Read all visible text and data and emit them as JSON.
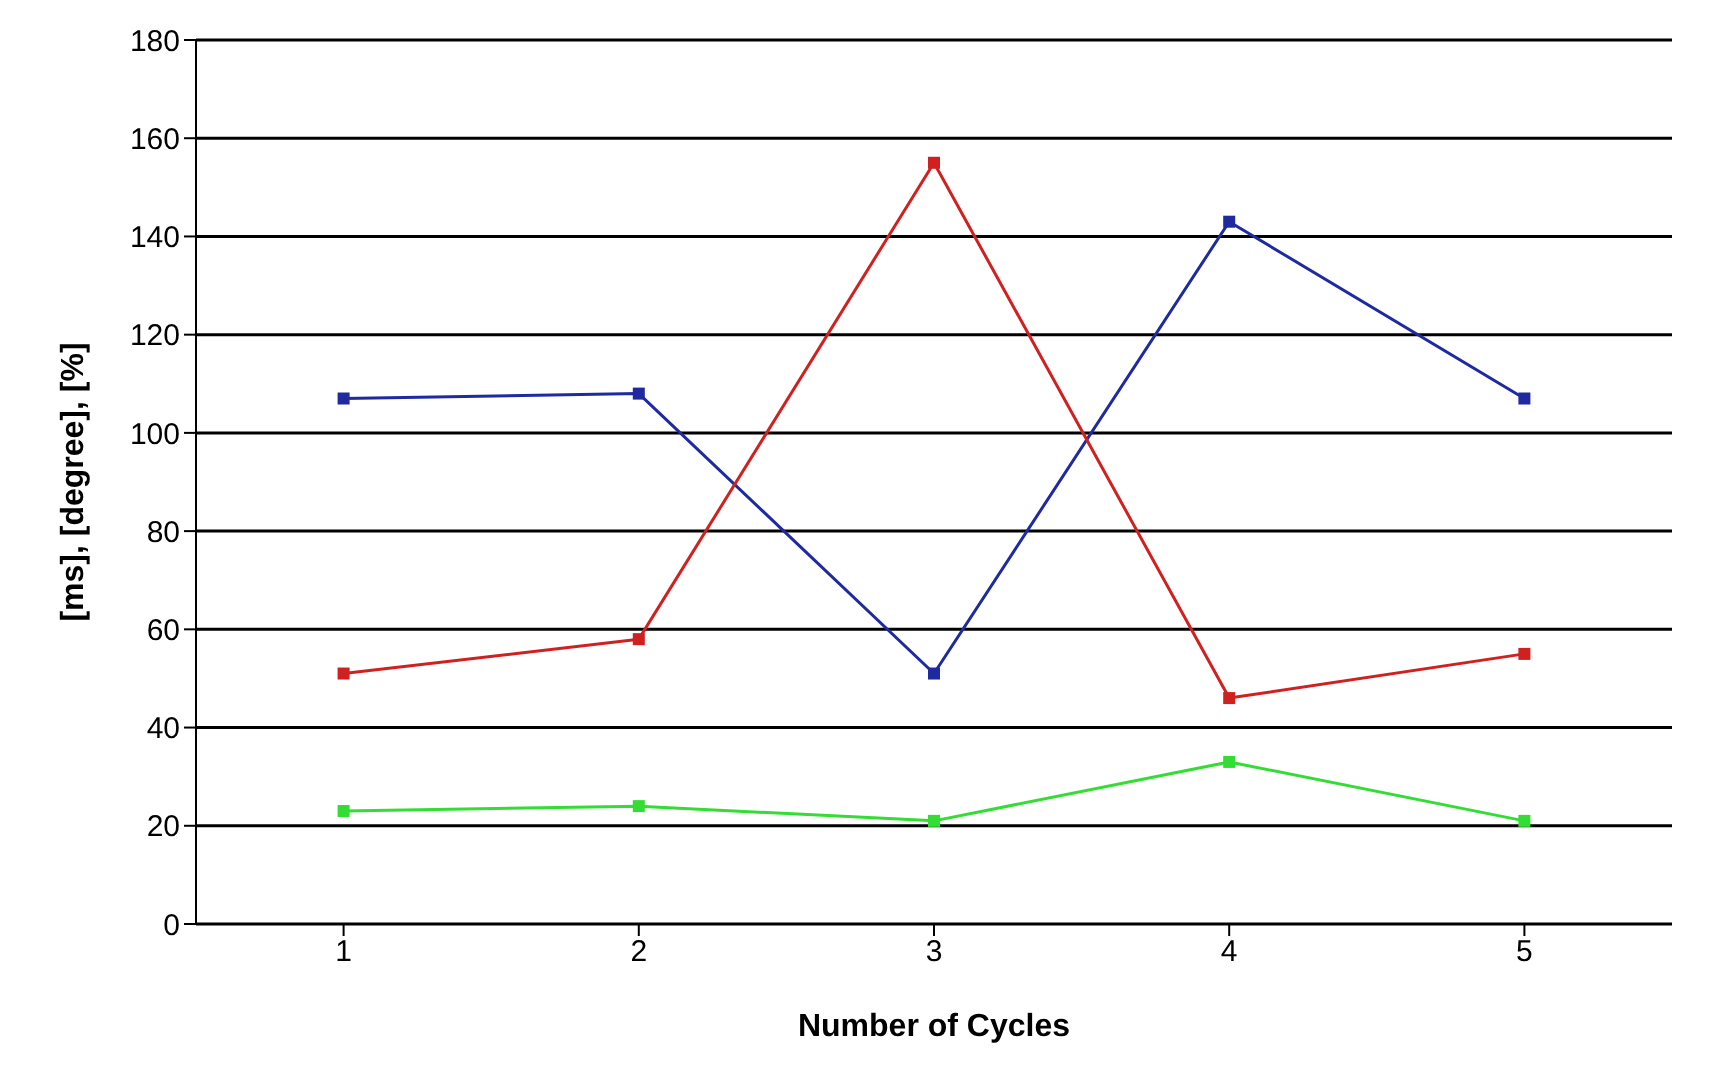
{
  "chart_data": {
    "type": "line",
    "xlabel": "Number of Cycles",
    "ylabel": "[ms], [degree], [%]",
    "categories": [
      "1",
      "2",
      "3",
      "4",
      "5"
    ],
    "series": [
      {
        "color": "#1f2aa0",
        "values": [
          107,
          108,
          51,
          143,
          107
        ]
      },
      {
        "color": "#d02020",
        "values": [
          51,
          58,
          155,
          46,
          55
        ]
      },
      {
        "color": "#33dd33",
        "values": [
          23,
          24,
          21,
          33,
          21
        ]
      }
    ],
    "ylim": [
      0,
      180
    ],
    "yticks": [
      0,
      20,
      40,
      60,
      80,
      100,
      120,
      140,
      160,
      180
    ],
    "grid": "y",
    "marker": "square"
  }
}
